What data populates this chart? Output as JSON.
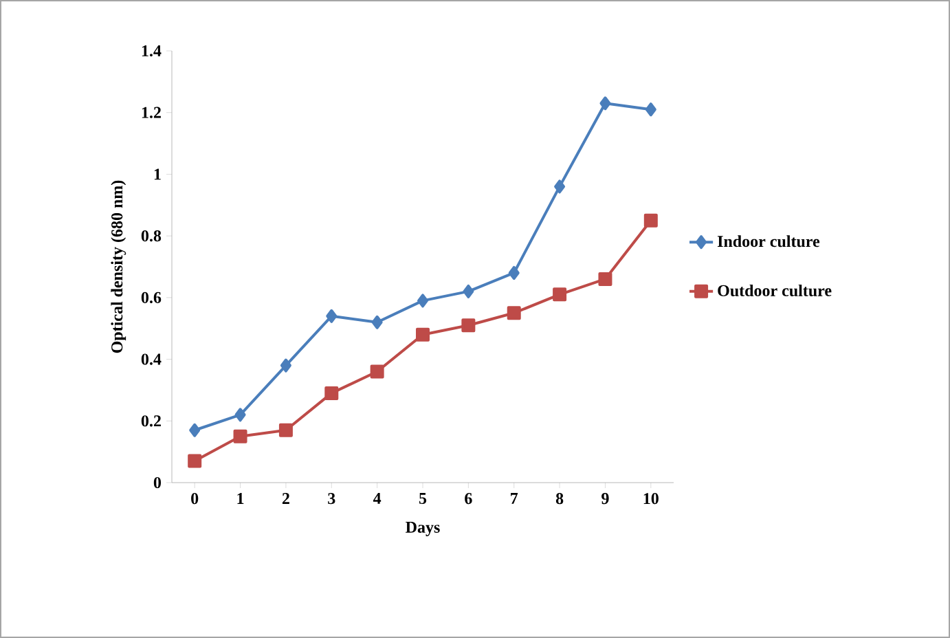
{
  "chart_data": {
    "type": "line",
    "xlabel": "Days",
    "ylabel": "Optical density (680 nm)",
    "categories": [
      "0",
      "1",
      "2",
      "3",
      "4",
      "5",
      "6",
      "7",
      "8",
      "9",
      "10"
    ],
    "ylim": [
      0,
      1.4
    ],
    "yticks": [
      0,
      0.2,
      0.4,
      0.6,
      0.8,
      1,
      1.2,
      1.4
    ],
    "grid": false,
    "legend": "right",
    "series": [
      {
        "name": "Indoor culture",
        "color": "#4a7ebb",
        "marker": "diamond",
        "values": [
          0.17,
          0.22,
          0.38,
          0.54,
          0.52,
          0.59,
          0.62,
          0.68,
          0.96,
          1.23,
          1.21
        ]
      },
      {
        "name": "Outdoor culture",
        "color": "#be4b48",
        "marker": "square",
        "values": [
          0.07,
          0.15,
          0.17,
          0.29,
          0.36,
          0.48,
          0.51,
          0.55,
          0.61,
          0.66,
          0.85
        ]
      }
    ]
  }
}
